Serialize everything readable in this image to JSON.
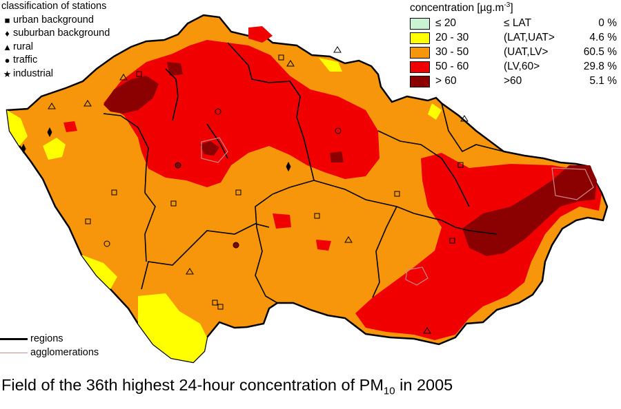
{
  "station_legend": {
    "title": "classification of stations",
    "items": [
      {
        "symbol": "square",
        "label": "urban background"
      },
      {
        "symbol": "diamond",
        "label": "suburban background"
      },
      {
        "symbol": "triangle",
        "label": "rural"
      },
      {
        "symbol": "circle",
        "label": "traffic"
      },
      {
        "symbol": "star",
        "label": "industrial"
      }
    ]
  },
  "concentration_legend": {
    "title": "concentration [µg.m",
    "title_exp": "-3",
    "title_close": "]",
    "classes": [
      {
        "range": "≤ 20",
        "limit": "≤ LAT",
        "percent": "0 %",
        "color": "#c9f3d3"
      },
      {
        "range": "20 - 30",
        "limit": "(LAT,UAT>",
        "percent": "4.6 %",
        "color": "#ffff00"
      },
      {
        "range": "30 - 50",
        "limit": "(UAT,LV>",
        "percent": "60.5 %",
        "color": "#f7960a"
      },
      {
        "range": "50 - 60",
        "limit": "(LV,60>",
        "percent": "29.8 %",
        "color": "#f00000"
      },
      {
        "range": "> 60",
        "limit": ">60",
        "percent": "5.1 %",
        "color": "#8b0000"
      }
    ]
  },
  "boundary_legend": {
    "regions": "regions",
    "agglomerations": "agglomerations",
    "regions_color": "#000000",
    "agglomerations_color": "#c98b8b"
  },
  "caption": {
    "text": "Field of the 36th highest 24-hour concentration of PM",
    "sub": "10",
    "suffix": " in 2005"
  }
}
